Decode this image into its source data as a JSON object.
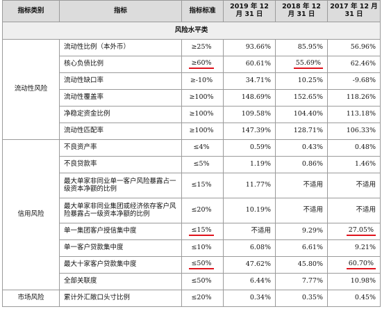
{
  "headers": [
    "指标类别",
    "指标",
    "指标标准",
    "2019 年 12 月 31 日",
    "2018 年 12 月 31 日",
    "2017 年 12 月 31 日"
  ],
  "section_title": "风险水平类",
  "underline_color": "#e0121c",
  "groups": [
    {
      "category": "流动性风险",
      "rows": [
        {
          "indicator": "流动性比例（本外币）",
          "standard": "≥25%",
          "v2019": "93.66%",
          "v2018": "85.95%",
          "v2017": "56.96%"
        },
        {
          "indicator": "核心负债比例",
          "standard": "≥60%",
          "v2019": "60.61%",
          "v2018": "55.69%",
          "v2017": "62.46%"
        },
        {
          "indicator": "流动性缺口率",
          "standard": "≥-10%",
          "v2019": "34.71%",
          "v2018": "10.25%",
          "v2017": "-9.68%"
        },
        {
          "indicator": "流动性覆盖率",
          "standard": "≥100%",
          "v2019": "148.69%",
          "v2018": "152.65%",
          "v2017": "118.26%"
        },
        {
          "indicator": "净稳定资金比例",
          "standard": "≥100%",
          "v2019": "109.58%",
          "v2018": "104.40%",
          "v2017": "113.18%"
        },
        {
          "indicator": "流动性匹配率",
          "standard": "≥100%",
          "v2019": "147.39%",
          "v2018": "128.71%",
          "v2017": "106.33%"
        }
      ]
    },
    {
      "category": "信用风险",
      "rows": [
        {
          "indicator": "不良资产率",
          "standard": "≤4%",
          "v2019": "0.59%",
          "v2018": "0.43%",
          "v2017": "0.48%"
        },
        {
          "indicator": "不良贷款率",
          "standard": "≤5%",
          "v2019": "1.19%",
          "v2018": "0.86%",
          "v2017": "1.46%"
        },
        {
          "indicator": "最大单家非同业单一客户风险暴露占一级资本净额的比例",
          "standard": "≤15%",
          "v2019": "11.77%",
          "v2018": "不适用",
          "v2017": "不适用"
        },
        {
          "indicator": "最大单家非同业集团或经济依存客户风险暴露占一级资本净额的比例",
          "standard": "≤20%",
          "v2019": "10.19%",
          "v2018": "不适用",
          "v2017": "不适用"
        },
        {
          "indicator": "单一集团客户授信集中度",
          "standard": "≤15%",
          "v2019": "不适用",
          "v2018": "9.29%",
          "v2017": "27.05%"
        },
        {
          "indicator": "单一客户贷款集中度",
          "standard": "≤10%",
          "v2019": "6.08%",
          "v2018": "6.61%",
          "v2017": "9.21%"
        },
        {
          "indicator": "最大十家客户贷款集中度",
          "standard": "≤50%",
          "v2019": "47.62%",
          "v2018": "45.80%",
          "v2017": "60.70%"
        },
        {
          "indicator": "全部关联度",
          "standard": "≤50%",
          "v2019": "6.44%",
          "v2018": "7.77%",
          "v2017": "10.98%"
        }
      ]
    },
    {
      "category": "市场风险",
      "rows": [
        {
          "indicator": "累计外汇敞口头寸比例",
          "standard": "≤20%",
          "v2019": "0.34%",
          "v2018": "0.35%",
          "v2017": "0.45%"
        }
      ]
    }
  ]
}
